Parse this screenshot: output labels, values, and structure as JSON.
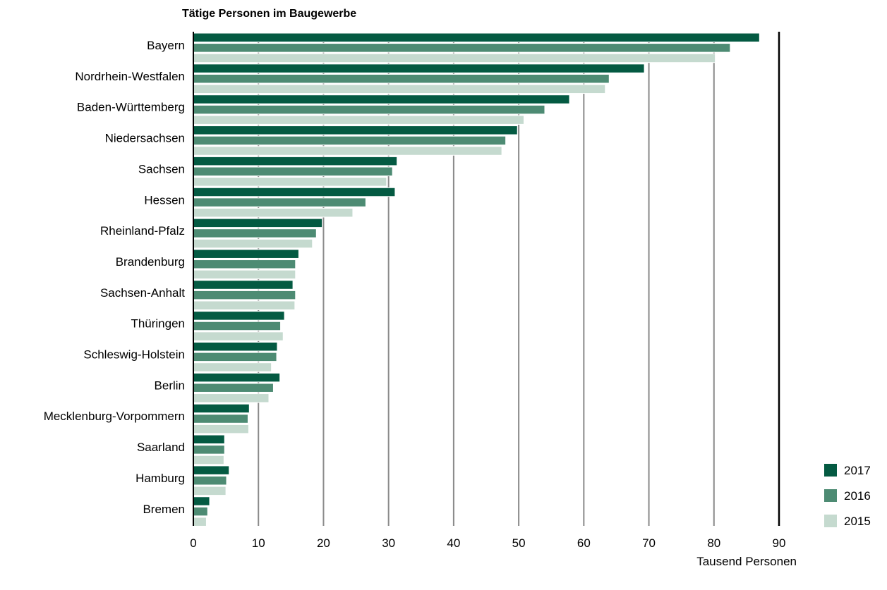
{
  "chart_data": {
    "type": "bar",
    "orientation": "horizontal",
    "title": "Tätige Personen im Baugewerbe",
    "xlabel": "Tausend Personen",
    "ylabel": "",
    "xlim": [
      0,
      90
    ],
    "xticks": [
      "0",
      "10",
      "20",
      "30",
      "40",
      "50",
      "60",
      "70",
      "80",
      "90"
    ],
    "grid": true,
    "legend_position": "bottom-right",
    "categories": [
      "Bayern",
      "Nordrhein-Westfalen",
      "Baden-Württemberg",
      "Niedersachsen",
      "Sachsen",
      "Hessen",
      "Rheinland-Pfalz",
      "Brandenburg",
      "Sachsen-Anhalt",
      "Thüringen",
      "Schleswig-Holstein",
      "Berlin",
      "Mecklenburg-Vorpommern",
      "Saarland",
      "Hamburg",
      "Bremen"
    ],
    "series": [
      {
        "name": "2017",
        "color": "#045a42",
        "values": [
          87.0,
          69.3,
          57.8,
          49.8,
          31.3,
          31.0,
          19.8,
          16.2,
          15.3,
          14.0,
          12.9,
          13.3,
          8.6,
          4.8,
          5.5,
          2.5
        ]
      },
      {
        "name": "2016",
        "color": "#4d8b73",
        "values": [
          82.5,
          63.9,
          54.0,
          48.0,
          30.6,
          26.5,
          18.9,
          15.7,
          15.7,
          13.4,
          12.8,
          12.3,
          8.4,
          4.8,
          5.1,
          2.2
        ]
      },
      {
        "name": "2015",
        "color": "#c5dacf",
        "values": [
          80.2,
          63.3,
          50.8,
          47.4,
          29.7,
          24.5,
          18.3,
          15.7,
          15.6,
          13.8,
          12.0,
          11.6,
          8.5,
          4.7,
          5.0,
          2.0
        ]
      }
    ]
  }
}
